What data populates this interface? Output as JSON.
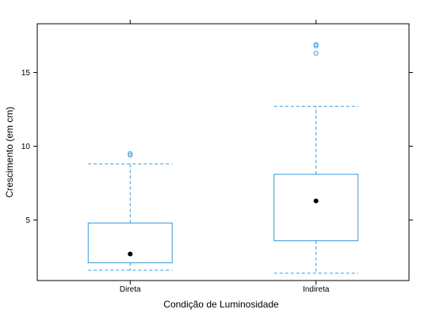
{
  "chart_data": {
    "type": "box",
    "title": "",
    "xlabel": "Condição de Luminosidade",
    "ylabel": "Crescimento (em cm)",
    "categories": [
      "Direta",
      "Indireta"
    ],
    "ylim": [
      0.9,
      18.3
    ],
    "yticks": [
      5,
      10,
      15
    ],
    "grid": false,
    "boxes": [
      {
        "category": "Direta",
        "whisker_low": 1.6,
        "q1": 2.1,
        "median": 2.7,
        "q3": 4.8,
        "whisker_high": 8.8,
        "outliers": [
          9.4,
          9.5
        ]
      },
      {
        "category": "Indireta",
        "whisker_low": 1.4,
        "q1": 3.6,
        "median": 6.3,
        "q3": 8.1,
        "whisker_high": 12.7,
        "outliers": [
          16.3,
          16.8,
          16.9
        ]
      }
    ],
    "colors": {
      "box": "#3399dd",
      "median_dot": "#000000",
      "axis": "#000000"
    }
  }
}
